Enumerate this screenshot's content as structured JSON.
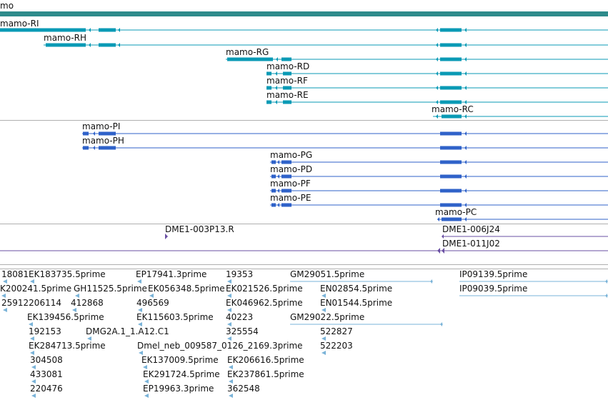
{
  "gene": {
    "name": "mo",
    "color": "#2e8b8b"
  },
  "track_colors": {
    "transcripts_a": "#0a9ab5",
    "transcripts_b": "#2f62c9",
    "clones": "#6a4fa3",
    "ests": "#7ab3d8",
    "dividers": "#b0b0b0"
  },
  "transcripts_a": [
    {
      "label": "mamo-RI"
    },
    {
      "label": "mamo-RH"
    },
    {
      "label": "mamo-RG"
    },
    {
      "label": "mamo-RD"
    },
    {
      "label": "mamo-RF"
    },
    {
      "label": "mamo-RE"
    },
    {
      "label": "mamo-RC"
    }
  ],
  "transcripts_b": [
    {
      "label": "mamo-PI"
    },
    {
      "label": "mamo-PH"
    },
    {
      "label": "mamo-PG"
    },
    {
      "label": "mamo-PD"
    },
    {
      "label": "mamo-PF"
    },
    {
      "label": "mamo-PE"
    },
    {
      "label": "mamo-PC"
    }
  ],
  "clones": [
    {
      "label": "DME1-003P13.R"
    },
    {
      "label": "DME1-006J24"
    },
    {
      "label": "DME1-011J02"
    }
  ],
  "ests": [
    {
      "label": "18081"
    },
    {
      "label": "EK183735.5prime"
    },
    {
      "label": "EP17941.3prime"
    },
    {
      "label": "19353"
    },
    {
      "label": "GM29051.5prime"
    },
    {
      "label": "IP09139.5prime"
    },
    {
      "label": "K200241.5prime"
    },
    {
      "label": "GH11525.5prime"
    },
    {
      "label": "EK056348.5prime"
    },
    {
      "label": "EK021526.5prime"
    },
    {
      "label": "EN02854.5prime"
    },
    {
      "label": "IP09039.5prime"
    },
    {
      "label": "25912206114"
    },
    {
      "label": "412868"
    },
    {
      "label": "496569"
    },
    {
      "label": "EK046962.5prime"
    },
    {
      "label": "EN01544.5prime"
    },
    {
      "label": "EK139456.5prime"
    },
    {
      "label": "EK115603.5prime"
    },
    {
      "label": "40223"
    },
    {
      "label": "GM29022.5prime"
    },
    {
      "label": "192153"
    },
    {
      "label": "DMG2A.1_1.A12.C1"
    },
    {
      "label": "325554"
    },
    {
      "label": "522827"
    },
    {
      "label": "EK284713.5prime"
    },
    {
      "label": "Dmel_neb_009587_0126_2169.3prime"
    },
    {
      "label": "522203"
    },
    {
      "label": "304508"
    },
    {
      "label": "EK137009.5prime"
    },
    {
      "label": "EK206616.5prime"
    },
    {
      "label": "433081"
    },
    {
      "label": "EK291724.5prime"
    },
    {
      "label": "EK237861.5prime"
    },
    {
      "label": "220476"
    },
    {
      "label": "EP19963.3prime"
    },
    {
      "label": "362548"
    }
  ]
}
